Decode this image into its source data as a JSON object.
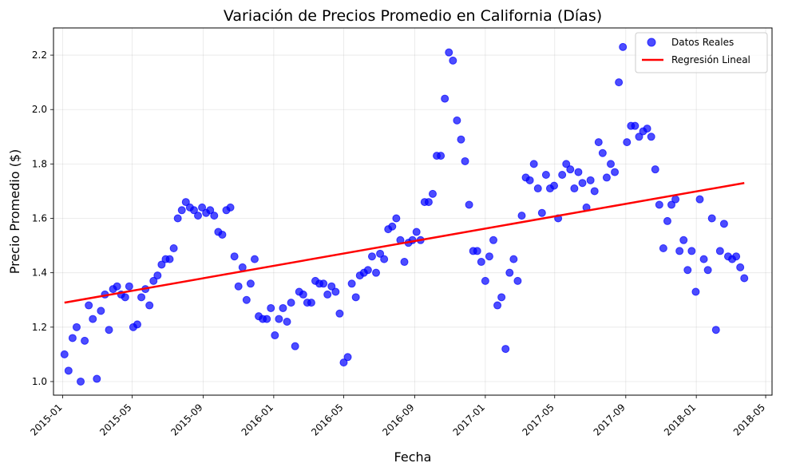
{
  "chart_data": {
    "type": "scatter",
    "title": "Variación de Precios Promedio en California (Días)",
    "xlabel": "Fecha",
    "ylabel": "Precio Promedio ($)",
    "x_ticks": [
      "2015-01",
      "2015-05",
      "2015-09",
      "2016-01",
      "2016-05",
      "2016-09",
      "2017-01",
      "2017-05",
      "2017-09",
      "2018-01",
      "2018-05"
    ],
    "y_ticks": [
      "1.0",
      "1.2",
      "1.4",
      "1.6",
      "1.8",
      "2.0",
      "2.2"
    ],
    "xlim": [
      "2014-12-16",
      "2018-05-12"
    ],
    "ylim": [
      0.95,
      2.3
    ],
    "grid": true,
    "legend_position": "top-right",
    "colors": {
      "scatter": "#0000ff",
      "regression": "#ff0000"
    },
    "series": [
      {
        "name": "Datos Reales",
        "kind": "scatter",
        "points": [
          [
            "2015-01-04",
            1.1
          ],
          [
            "2015-01-11",
            1.04
          ],
          [
            "2015-01-18",
            1.16
          ],
          [
            "2015-01-25",
            1.2
          ],
          [
            "2015-02-01",
            1.0
          ],
          [
            "2015-02-08",
            1.15
          ],
          [
            "2015-02-15",
            1.28
          ],
          [
            "2015-02-22",
            1.23
          ],
          [
            "2015-03-01",
            1.01
          ],
          [
            "2015-03-08",
            1.26
          ],
          [
            "2015-03-15",
            1.32
          ],
          [
            "2015-03-22",
            1.19
          ],
          [
            "2015-03-29",
            1.34
          ],
          [
            "2015-04-05",
            1.35
          ],
          [
            "2015-04-12",
            1.32
          ],
          [
            "2015-04-19",
            1.31
          ],
          [
            "2015-04-26",
            1.35
          ],
          [
            "2015-05-03",
            1.2
          ],
          [
            "2015-05-10",
            1.21
          ],
          [
            "2015-05-17",
            1.31
          ],
          [
            "2015-05-24",
            1.34
          ],
          [
            "2015-05-31",
            1.28
          ],
          [
            "2015-06-07",
            1.37
          ],
          [
            "2015-06-14",
            1.39
          ],
          [
            "2015-06-21",
            1.43
          ],
          [
            "2015-06-28",
            1.45
          ],
          [
            "2015-07-05",
            1.45
          ],
          [
            "2015-07-12",
            1.49
          ],
          [
            "2015-07-19",
            1.6
          ],
          [
            "2015-07-26",
            1.63
          ],
          [
            "2015-08-02",
            1.66
          ],
          [
            "2015-08-09",
            1.64
          ],
          [
            "2015-08-16",
            1.63
          ],
          [
            "2015-08-23",
            1.61
          ],
          [
            "2015-08-30",
            1.64
          ],
          [
            "2015-09-06",
            1.62
          ],
          [
            "2015-09-13",
            1.63
          ],
          [
            "2015-09-20",
            1.61
          ],
          [
            "2015-09-27",
            1.55
          ],
          [
            "2015-10-04",
            1.54
          ],
          [
            "2015-10-11",
            1.63
          ],
          [
            "2015-10-18",
            1.64
          ],
          [
            "2015-10-25",
            1.46
          ],
          [
            "2015-11-01",
            1.35
          ],
          [
            "2015-11-08",
            1.42
          ],
          [
            "2015-11-15",
            1.3
          ],
          [
            "2015-11-22",
            1.36
          ],
          [
            "2015-11-29",
            1.45
          ],
          [
            "2015-12-06",
            1.24
          ],
          [
            "2015-12-13",
            1.23
          ],
          [
            "2015-12-20",
            1.23
          ],
          [
            "2015-12-27",
            1.27
          ],
          [
            "2016-01-03",
            1.17
          ],
          [
            "2016-01-10",
            1.23
          ],
          [
            "2016-01-17",
            1.27
          ],
          [
            "2016-01-24",
            1.22
          ],
          [
            "2016-01-31",
            1.29
          ],
          [
            "2016-02-07",
            1.13
          ],
          [
            "2016-02-14",
            1.33
          ],
          [
            "2016-02-21",
            1.32
          ],
          [
            "2016-02-28",
            1.29
          ],
          [
            "2016-03-06",
            1.29
          ],
          [
            "2016-03-13",
            1.37
          ],
          [
            "2016-03-20",
            1.36
          ],
          [
            "2016-03-27",
            1.36
          ],
          [
            "2016-04-03",
            1.32
          ],
          [
            "2016-04-10",
            1.35
          ],
          [
            "2016-04-17",
            1.33
          ],
          [
            "2016-04-24",
            1.25
          ],
          [
            "2016-05-01",
            1.07
          ],
          [
            "2016-05-08",
            1.09
          ],
          [
            "2016-05-15",
            1.36
          ],
          [
            "2016-05-22",
            1.31
          ],
          [
            "2016-05-29",
            1.39
          ],
          [
            "2016-06-05",
            1.4
          ],
          [
            "2016-06-12",
            1.41
          ],
          [
            "2016-06-19",
            1.46
          ],
          [
            "2016-06-26",
            1.4
          ],
          [
            "2016-07-03",
            1.47
          ],
          [
            "2016-07-10",
            1.45
          ],
          [
            "2016-07-17",
            1.56
          ],
          [
            "2016-07-24",
            1.57
          ],
          [
            "2016-07-31",
            1.6
          ],
          [
            "2016-08-07",
            1.52
          ],
          [
            "2016-08-14",
            1.44
          ],
          [
            "2016-08-21",
            1.51
          ],
          [
            "2016-08-28",
            1.52
          ],
          [
            "2016-09-04",
            1.55
          ],
          [
            "2016-09-11",
            1.52
          ],
          [
            "2016-09-18",
            1.66
          ],
          [
            "2016-09-25",
            1.66
          ],
          [
            "2016-10-02",
            1.69
          ],
          [
            "2016-10-09",
            1.83
          ],
          [
            "2016-10-16",
            1.83
          ],
          [
            "2016-10-23",
            2.04
          ],
          [
            "2016-10-30",
            2.21
          ],
          [
            "2016-11-06",
            2.18
          ],
          [
            "2016-11-13",
            1.96
          ],
          [
            "2016-11-20",
            1.89
          ],
          [
            "2016-11-27",
            1.81
          ],
          [
            "2016-12-04",
            1.65
          ],
          [
            "2016-12-11",
            1.48
          ],
          [
            "2016-12-18",
            1.48
          ],
          [
            "2016-12-25",
            1.44
          ],
          [
            "2017-01-01",
            1.37
          ],
          [
            "2017-01-08",
            1.46
          ],
          [
            "2017-01-15",
            1.52
          ],
          [
            "2017-01-22",
            1.28
          ],
          [
            "2017-01-29",
            1.31
          ],
          [
            "2017-02-05",
            1.12
          ],
          [
            "2017-02-12",
            1.4
          ],
          [
            "2017-02-19",
            1.45
          ],
          [
            "2017-02-26",
            1.37
          ],
          [
            "2017-03-05",
            1.61
          ],
          [
            "2017-03-12",
            1.75
          ],
          [
            "2017-03-19",
            1.74
          ],
          [
            "2017-03-26",
            1.8
          ],
          [
            "2017-04-02",
            1.71
          ],
          [
            "2017-04-09",
            1.62
          ],
          [
            "2017-04-16",
            1.76
          ],
          [
            "2017-04-23",
            1.71
          ],
          [
            "2017-04-30",
            1.72
          ],
          [
            "2017-05-07",
            1.6
          ],
          [
            "2017-05-14",
            1.76
          ],
          [
            "2017-05-21",
            1.8
          ],
          [
            "2017-05-28",
            1.78
          ],
          [
            "2017-06-04",
            1.71
          ],
          [
            "2017-06-11",
            1.77
          ],
          [
            "2017-06-18",
            1.73
          ],
          [
            "2017-06-25",
            1.64
          ],
          [
            "2017-07-02",
            1.74
          ],
          [
            "2017-07-09",
            1.7
          ],
          [
            "2017-07-16",
            1.88
          ],
          [
            "2017-07-23",
            1.84
          ],
          [
            "2017-07-30",
            1.75
          ],
          [
            "2017-08-06",
            1.8
          ],
          [
            "2017-08-13",
            1.77
          ],
          [
            "2017-08-20",
            2.1
          ],
          [
            "2017-08-27",
            2.23
          ],
          [
            "2017-09-03",
            1.88
          ],
          [
            "2017-09-10",
            1.94
          ],
          [
            "2017-09-17",
            1.94
          ],
          [
            "2017-09-24",
            1.9
          ],
          [
            "2017-10-01",
            1.92
          ],
          [
            "2017-10-08",
            1.93
          ],
          [
            "2017-10-15",
            1.9
          ],
          [
            "2017-10-22",
            1.78
          ],
          [
            "2017-10-29",
            1.65
          ],
          [
            "2017-11-05",
            1.49
          ],
          [
            "2017-11-12",
            1.59
          ],
          [
            "2017-11-19",
            1.65
          ],
          [
            "2017-11-26",
            1.67
          ],
          [
            "2017-12-03",
            1.48
          ],
          [
            "2017-12-10",
            1.52
          ],
          [
            "2017-12-17",
            1.41
          ],
          [
            "2017-12-24",
            1.48
          ],
          [
            "2017-12-31",
            1.33
          ],
          [
            "2018-01-07",
            1.67
          ],
          [
            "2018-01-14",
            1.45
          ],
          [
            "2018-01-21",
            1.41
          ],
          [
            "2018-01-28",
            1.6
          ],
          [
            "2018-02-04",
            1.19
          ],
          [
            "2018-02-11",
            1.48
          ],
          [
            "2018-02-18",
            1.58
          ],
          [
            "2018-02-25",
            1.46
          ],
          [
            "2018-03-04",
            1.45
          ],
          [
            "2018-03-11",
            1.46
          ],
          [
            "2018-03-18",
            1.42
          ],
          [
            "2018-03-25",
            1.38
          ]
        ]
      },
      {
        "name": "Regresión Lineal",
        "kind": "line",
        "points": [
          [
            "2015-01-04",
            1.29
          ],
          [
            "2018-03-25",
            1.73
          ]
        ]
      }
    ]
  }
}
